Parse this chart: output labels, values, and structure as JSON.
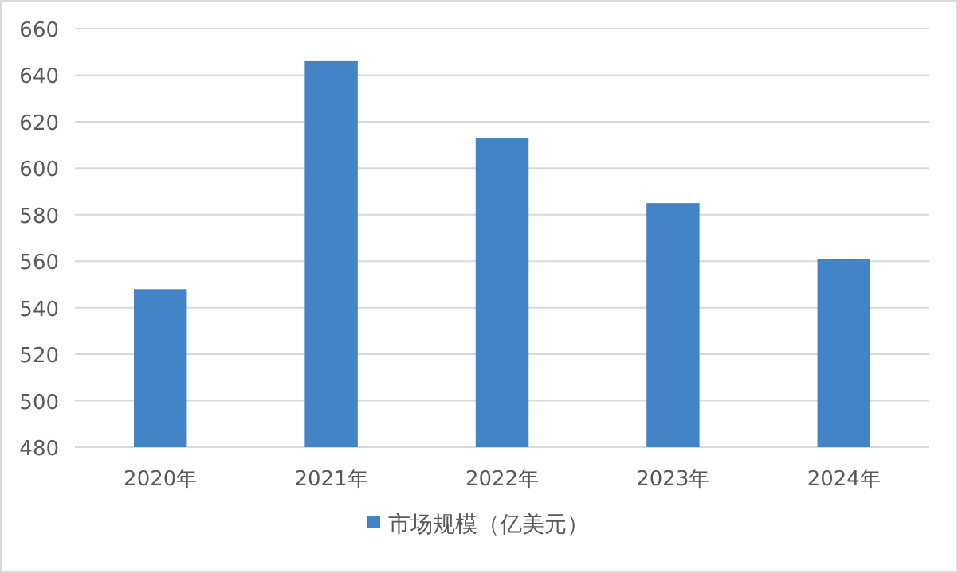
{
  "chart_data": {
    "type": "bar",
    "categories": [
      "2020年",
      "2021年",
      "2022年",
      "2023年",
      "2024年"
    ],
    "series": [
      {
        "name": "市场规模（亿美元）",
        "color": "#4284c6",
        "values": [
          548,
          646,
          613,
          585,
          561
        ]
      }
    ],
    "ylim": [
      480,
      660
    ],
    "yticks": [
      480,
      500,
      520,
      540,
      560,
      580,
      600,
      620,
      640,
      660
    ],
    "grid": "y",
    "legend": "bottom"
  }
}
